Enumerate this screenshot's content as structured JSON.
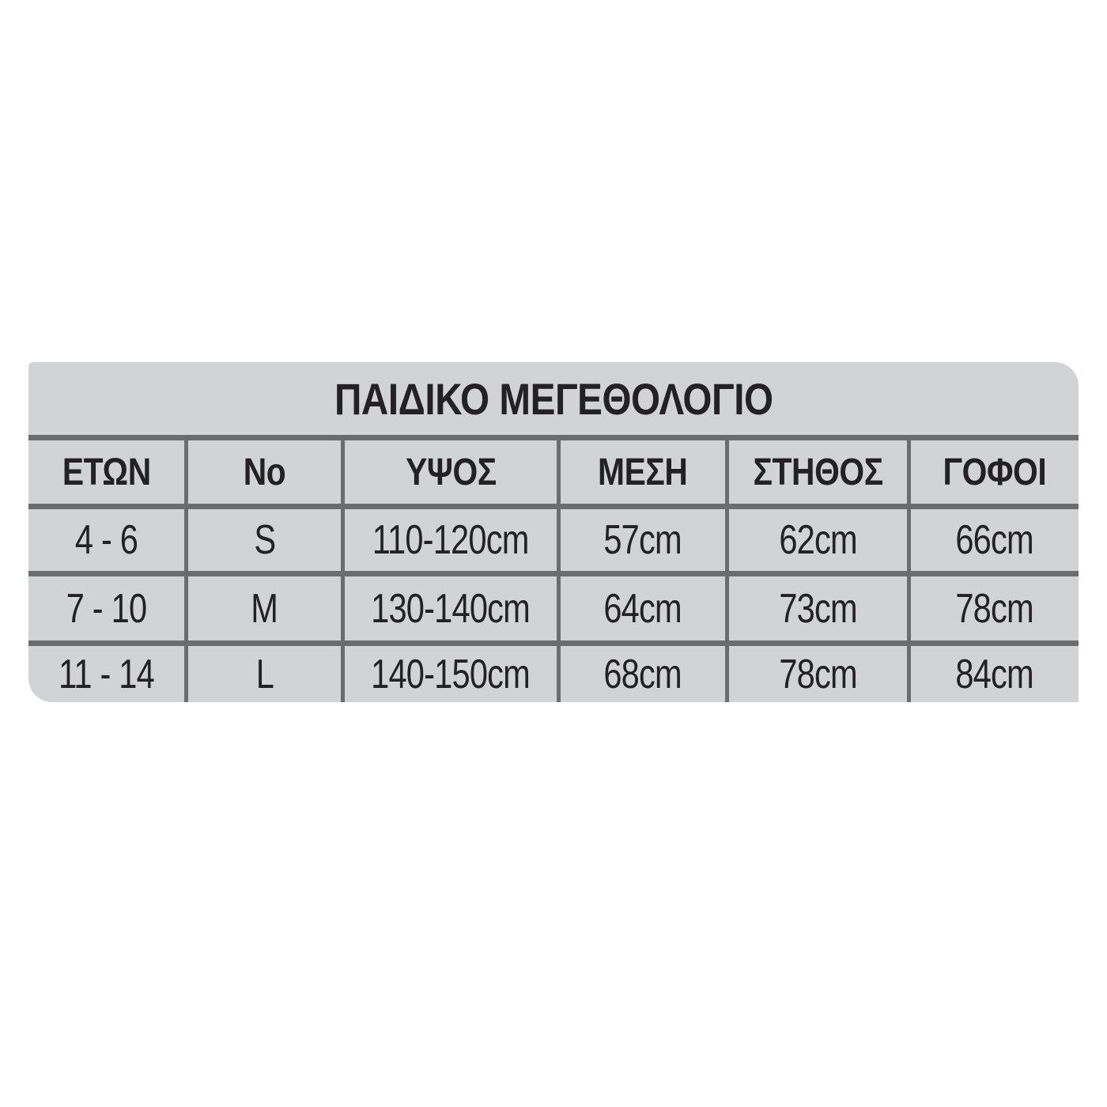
{
  "table": {
    "title": "ΠΑΙΔΙΚΟ ΜΕΓΕΘΟΛΟΓΙΟ",
    "columns": [
      "ΕΤΩΝ",
      "Νο",
      "ΥΨΟΣ",
      "ΜΕΣΗ",
      "ΣΤΗΘΟΣ",
      "ΓΟΦΟΙ"
    ],
    "rows": [
      [
        "4 - 6",
        "S",
        "110-120cm",
        "57cm",
        "62cm",
        "66cm"
      ],
      [
        "7 - 10",
        "M",
        "130-140cm",
        "64cm",
        "73cm",
        "78cm"
      ],
      [
        "11 - 14",
        "L",
        "140-150cm",
        "68cm",
        "78cm",
        "84cm"
      ]
    ],
    "colors": {
      "table_background": "#d1d3d4",
      "grid_line": "#6b6c6e",
      "text": "#242122",
      "page_background": "#ffffff"
    }
  },
  "chart_data": {
    "type": "table",
    "title": "ΠΑΙΔΙΚΟ ΜΕΓΕΘΟΛΟΓΙΟ",
    "columns": [
      "ΕΤΩΝ",
      "Νο",
      "ΥΨΟΣ",
      "ΜΕΣΗ",
      "ΣΤΗΘΟΣ",
      "ΓΟΦΟΙ"
    ],
    "rows": [
      {
        "etos": "4 - 6",
        "no": "S",
        "ypsos": "110-120cm",
        "mesi": "57cm",
        "stithos": "62cm",
        "gofoi": "66cm"
      },
      {
        "etos": "7 - 10",
        "no": "M",
        "ypsos": "130-140cm",
        "mesi": "64cm",
        "stithos": "73cm",
        "gofoi": "78cm"
      },
      {
        "etos": "11 - 14",
        "no": "L",
        "ypsos": "140-150cm",
        "mesi": "68cm",
        "stithos": "78cm",
        "gofoi": "84cm"
      }
    ]
  }
}
